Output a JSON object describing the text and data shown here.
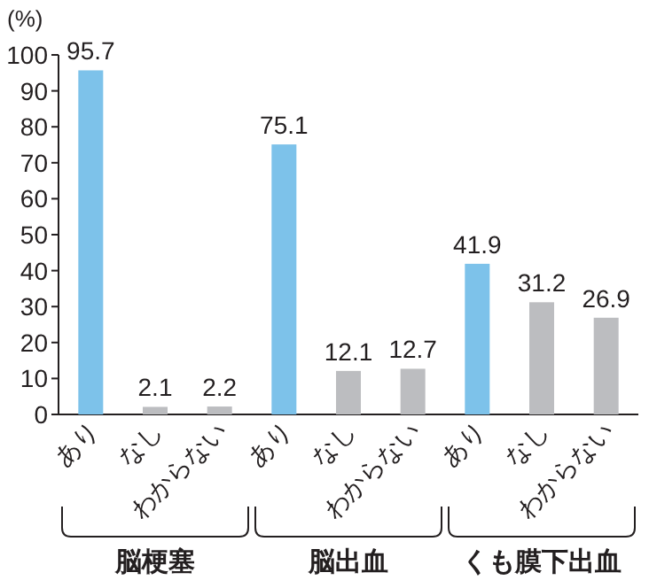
{
  "chart_data": {
    "type": "bar",
    "ylabel": "(%)",
    "categories": [
      "あり",
      "なし",
      "わからない",
      "あり",
      "なし",
      "わからない",
      "あり",
      "なし",
      "わからない"
    ],
    "values": [
      95.7,
      2.1,
      2.2,
      75.1,
      12.1,
      12.7,
      41.9,
      31.2,
      26.9
    ],
    "colors": [
      "#7dc2ea",
      "#bcbdc0",
      "#bcbdc0",
      "#7dc2ea",
      "#bcbdc0",
      "#bcbdc0",
      "#7dc2ea",
      "#bcbdc0",
      "#bcbdc0"
    ],
    "data_labels": true,
    "ylim": [
      0,
      100
    ],
    "yticks": [
      0,
      10,
      20,
      30,
      40,
      50,
      60,
      70,
      80,
      90,
      100
    ],
    "annotations": [
      "脳梗塞",
      "脳出血",
      "くも膜下出血"
    ]
  }
}
